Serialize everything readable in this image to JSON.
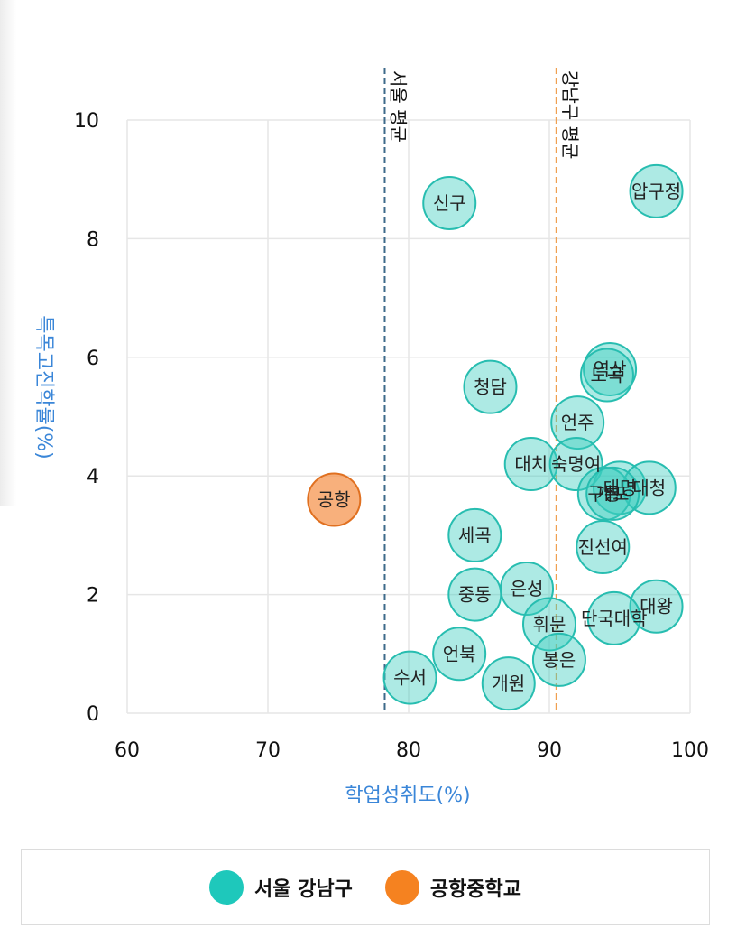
{
  "chart_data": {
    "type": "scatter",
    "xlabel": "학업성취도(%)",
    "ylabel": "특목고진학률(%)",
    "xlim": [
      60,
      100
    ],
    "ylim": [
      0,
      10
    ],
    "x_ticks": [
      "60",
      "70",
      "80",
      "90",
      "100"
    ],
    "y_ticks": [
      "0",
      "2",
      "4",
      "6",
      "8",
      "10"
    ],
    "grid": true,
    "reference_lines": [
      {
        "label": "서울 평균",
        "x": 78.3,
        "color": "#3d6a8a"
      },
      {
        "label": "강남구 평균",
        "x": 90.5,
        "color": "#f0a050"
      }
    ],
    "series": [
      {
        "name": "서울 강남구",
        "color": "#2ecfc2",
        "points": [
          {
            "label": "신구",
            "x": 82.9,
            "y": 8.6
          },
          {
            "label": "압구정",
            "x": 97.6,
            "y": 8.8
          },
          {
            "label": "역삼",
            "x": 94.3,
            "y": 5.8
          },
          {
            "label": "도곡",
            "x": 94.1,
            "y": 5.7
          },
          {
            "label": "청담",
            "x": 85.8,
            "y": 5.5
          },
          {
            "label": "언주",
            "x": 92.0,
            "y": 4.9
          },
          {
            "label": "대치",
            "x": 88.7,
            "y": 4.2
          },
          {
            "label": "숙명여",
            "x": 91.9,
            "y": 4.2
          },
          {
            "label": "대명",
            "x": 95.0,
            "y": 3.8
          },
          {
            "label": "대청",
            "x": 97.1,
            "y": 3.8
          },
          {
            "label": "구룡",
            "x": 93.9,
            "y": 3.7
          },
          {
            "label": "개포",
            "x": 94.5,
            "y": 3.7
          },
          {
            "label": "진선여",
            "x": 93.8,
            "y": 2.8
          },
          {
            "label": "세곡",
            "x": 84.7,
            "y": 3.0
          },
          {
            "label": "은성",
            "x": 88.4,
            "y": 2.1
          },
          {
            "label": "중동",
            "x": 84.7,
            "y": 2.0
          },
          {
            "label": "대왕",
            "x": 97.6,
            "y": 1.8
          },
          {
            "label": "단국대학",
            "x": 94.6,
            "y": 1.6
          },
          {
            "label": "휘문",
            "x": 90.0,
            "y": 1.5
          },
          {
            "label": "언북",
            "x": 83.6,
            "y": 1.0
          },
          {
            "label": "봉은",
            "x": 90.7,
            "y": 0.9
          },
          {
            "label": "수서",
            "x": 80.1,
            "y": 0.6
          },
          {
            "label": "개원",
            "x": 87.1,
            "y": 0.5
          }
        ]
      },
      {
        "name": "공항중학교",
        "color": "#f58220",
        "points": [
          {
            "label": "공항",
            "x": 74.7,
            "y": 3.6
          }
        ]
      }
    ]
  },
  "legend": {
    "items": [
      {
        "label": "서울 강남구",
        "color": "#1ec8bb"
      },
      {
        "label": "공항중학교",
        "color": "#f58220"
      }
    ]
  }
}
